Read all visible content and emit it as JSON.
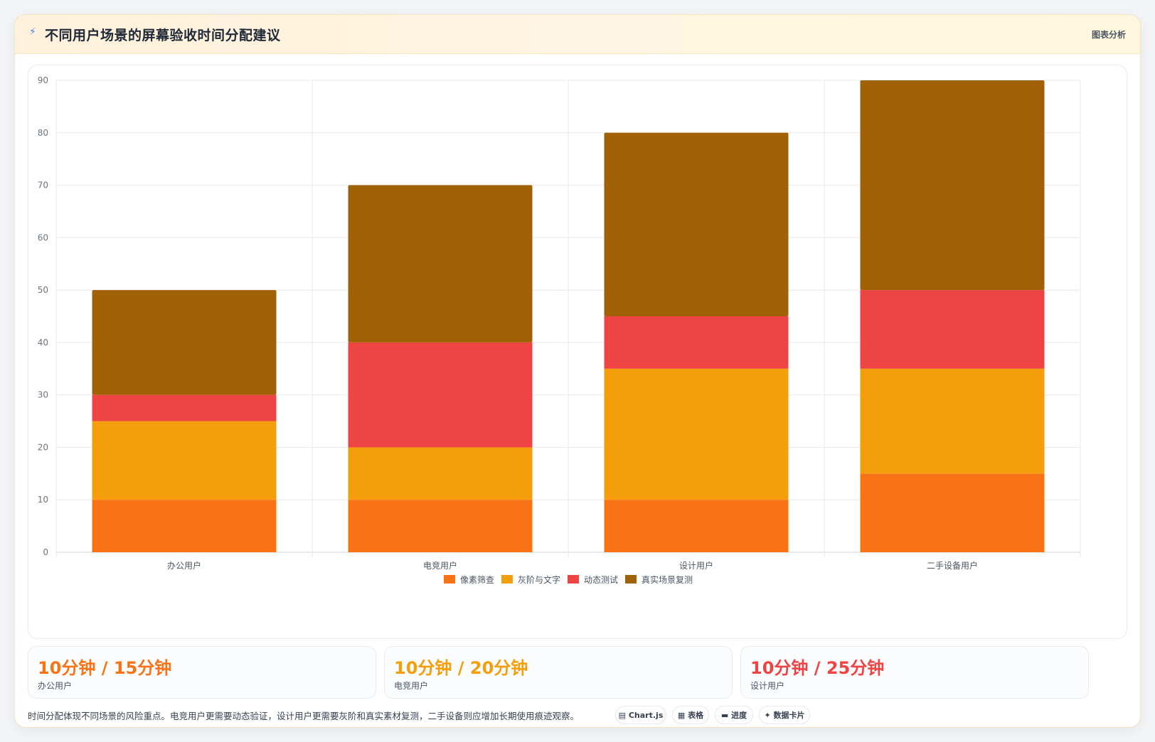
{
  "header": {
    "icon": "lightning-icon",
    "title": "不同用户场景的屏幕验收时间分配建议",
    "tag": "图表分析"
  },
  "chart_data": {
    "type": "bar",
    "stacked": true,
    "categories": [
      "办公用户",
      "电竞用户",
      "设计用户",
      "二手设备用户"
    ],
    "series": [
      {
        "name": "像素筛查",
        "color": "#f97316",
        "values": [
          10,
          10,
          10,
          15
        ]
      },
      {
        "name": "灰阶与文字",
        "color": "#f59e0b",
        "values": [
          15,
          10,
          25,
          20
        ]
      },
      {
        "name": "动态测试",
        "color": "#ef4444",
        "values": [
          5,
          20,
          10,
          15
        ]
      },
      {
        "name": "真实场景复测",
        "color": "#a16207",
        "values": [
          20,
          30,
          35,
          40
        ]
      }
    ],
    "ylim": [
      0,
      90
    ],
    "yticks": [
      "0",
      "10",
      "20",
      "30",
      "40",
      "50",
      "60",
      "70",
      "80",
      "90"
    ],
    "grid": true,
    "legend": "bottom"
  },
  "stats": [
    {
      "value": "10分钟 / 15分钟",
      "label": "办公用户",
      "color": "#f97316"
    },
    {
      "value": "10分钟 / 20分钟",
      "label": "电竞用户",
      "color": "#f59e0b"
    },
    {
      "value": "10分钟 / 25分钟",
      "label": "设计用户",
      "color": "#ef4444"
    }
  ],
  "note": "时间分配体现不同场景的风险重点。电竞用户更需要动态验证，设计用户更需要灰阶和真实素材复测，二手设备则应增加长期使用痕迹观察。",
  "pills": [
    {
      "icon": "▤",
      "label": "Chart.js"
    },
    {
      "icon": "▦",
      "label": "表格"
    },
    {
      "icon": "▬",
      "label": "进度"
    },
    {
      "icon": "✦",
      "label": "数据卡片"
    }
  ]
}
